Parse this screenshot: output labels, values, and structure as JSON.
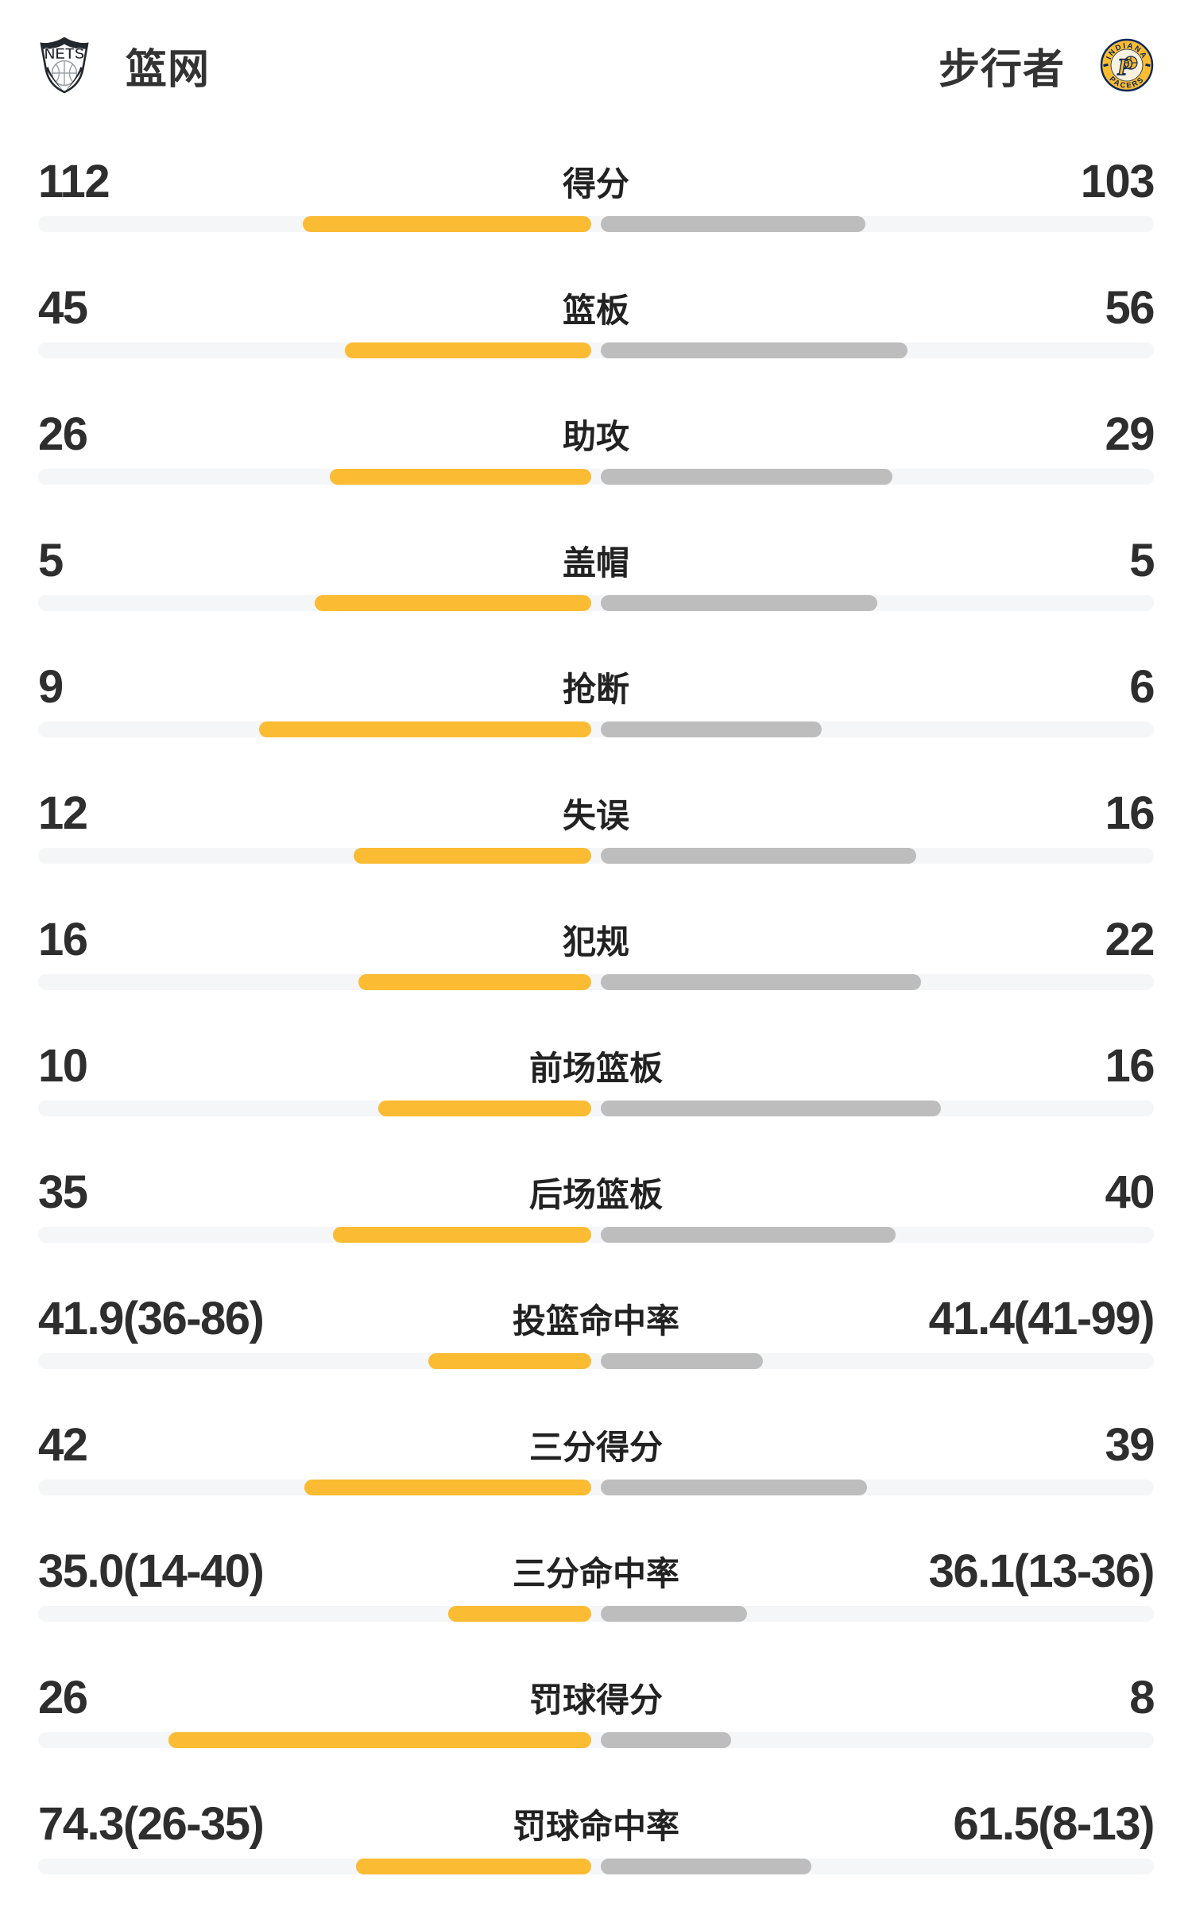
{
  "header": {
    "left_team": {
      "name": "篮网",
      "logo_icon": "nets-shield-logo-icon",
      "logo_text": "NETS"
    },
    "right_team": {
      "name": "步行者",
      "logo_icon": "pacers-circle-logo-icon",
      "logo_text_top": "INDIANA",
      "logo_text_bottom": "PACERS",
      "logo_letter": "P"
    }
  },
  "colors": {
    "left_bar": "#FBBB33",
    "right_bar": "#BDBDBD",
    "track": "#F5F6F8",
    "value_text": "#2E2E2E",
    "label_text": "#222222",
    "team_text": "#333333",
    "nets_dark": "#23272E",
    "pacers_gold": "#FDBB30",
    "pacers_navy": "#06275D",
    "pacers_cream": "#F8F1DE"
  },
  "chart_data": {
    "type": "bar",
    "subtype": "paired-horizontal-team-comparison",
    "teams": [
      "篮网",
      "步行者"
    ],
    "bar_origin": "center",
    "bar_width_unit": "percent of half track width",
    "rows": [
      {
        "label": "得分",
        "left": "112",
        "right": "103",
        "left_value": 112,
        "right_value": 103,
        "left_pct": 52.1,
        "right_pct": 47.9
      },
      {
        "label": "篮板",
        "left": "45",
        "right": "56",
        "left_value": 45,
        "right_value": 56,
        "left_pct": 44.6,
        "right_pct": 55.4
      },
      {
        "label": "助攻",
        "left": "26",
        "right": "29",
        "left_value": 26,
        "right_value": 29,
        "left_pct": 47.3,
        "right_pct": 52.7
      },
      {
        "label": "盖帽",
        "left": "5",
        "right": "5",
        "left_value": 5,
        "right_value": 5,
        "left_pct": 50.0,
        "right_pct": 50.0
      },
      {
        "label": "抢断",
        "left": "9",
        "right": "6",
        "left_value": 9,
        "right_value": 6,
        "left_pct": 60.0,
        "right_pct": 40.0
      },
      {
        "label": "失误",
        "left": "12",
        "right": "16",
        "left_value": 12,
        "right_value": 16,
        "left_pct": 42.9,
        "right_pct": 57.1
      },
      {
        "label": "犯规",
        "left": "16",
        "right": "22",
        "left_value": 16,
        "right_value": 22,
        "left_pct": 42.1,
        "right_pct": 57.9
      },
      {
        "label": "前场篮板",
        "left": "10",
        "right": "16",
        "left_value": 10,
        "right_value": 16,
        "left_pct": 38.5,
        "right_pct": 61.5
      },
      {
        "label": "后场篮板",
        "left": "35",
        "right": "40",
        "left_value": 35,
        "right_value": 40,
        "left_pct": 46.7,
        "right_pct": 53.3
      },
      {
        "label": "投篮命中率",
        "left": "41.9(36-86)",
        "right": "41.4(41-99)",
        "left_value": 41.9,
        "right_value": 41.4,
        "left_pct": 29.5,
        "right_pct": 29.3
      },
      {
        "label": "三分得分",
        "left": "42",
        "right": "39",
        "left_value": 42,
        "right_value": 39,
        "left_pct": 51.9,
        "right_pct": 48.1
      },
      {
        "label": "三分命中率",
        "left": "35.0(14-40)",
        "right": "36.1(13-36)",
        "left_value": 35.0,
        "right_value": 36.1,
        "left_pct": 25.9,
        "right_pct": 26.5
      },
      {
        "label": "罚球得分",
        "left": "26",
        "right": "8",
        "left_value": 26,
        "right_value": 8,
        "left_pct": 76.5,
        "right_pct": 23.5
      },
      {
        "label": "罚球命中率",
        "left": "74.3(26-35)",
        "right": "61.5(8-13)",
        "left_value": 74.3,
        "right_value": 61.5,
        "left_pct": 42.6,
        "right_pct": 38.1
      }
    ]
  }
}
